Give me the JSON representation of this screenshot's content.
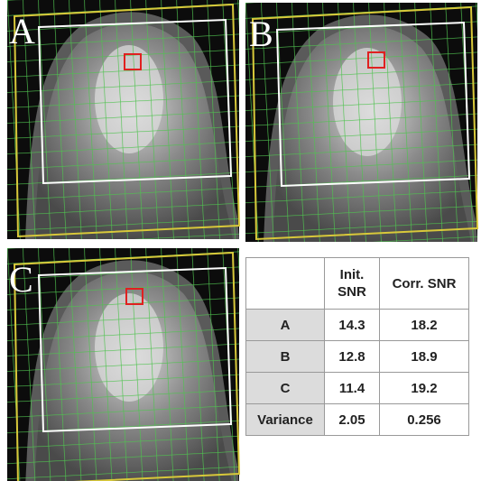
{
  "panels": [
    {
      "label": "A"
    },
    {
      "label": "B"
    },
    {
      "label": "C"
    }
  ],
  "table": {
    "header": [
      "Init. SNR",
      "Corr. SNR"
    ],
    "rows": [
      [
        "A",
        "14.3",
        "18.2"
      ],
      [
        "B",
        "12.8",
        "18.9"
      ],
      [
        "C",
        "11.4",
        "19.2"
      ],
      [
        "Variance",
        "2.05",
        "0.256"
      ]
    ]
  }
}
